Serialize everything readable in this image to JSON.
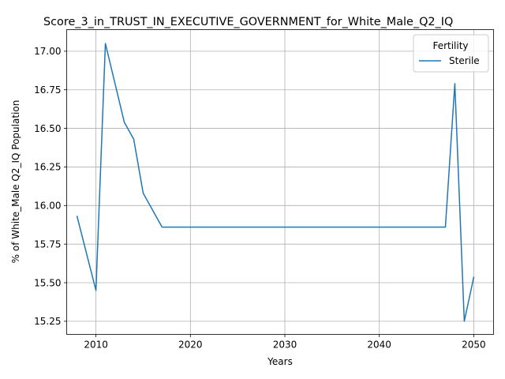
{
  "chart_data": {
    "type": "line",
    "title": "Score_3_in_TRUST_IN_EXECUTIVE_GOVERNMENT_for_White_Male_Q2_IQ",
    "xlabel": "Years",
    "ylabel": "% of White_Male Q2_IQ Population",
    "xlim": [
      2006.9,
      2052.1
    ],
    "ylim": [
      15.165,
      17.14
    ],
    "x_ticks": [
      2010,
      2020,
      2030,
      2040,
      2050
    ],
    "y_ticks": [
      15.25,
      15.5,
      15.75,
      16.0,
      16.25,
      16.5,
      16.75,
      17.0
    ],
    "grid": true,
    "legend": {
      "title": "Fertility",
      "placement": "top-right"
    },
    "series": [
      {
        "name": "Sterile",
        "color": "#1f77b4",
        "x": [
          2008,
          2010,
          2011,
          2013,
          2014,
          2015,
          2017,
          2018,
          2047,
          2048,
          2049,
          2050
        ],
        "y": [
          15.93,
          15.45,
          17.05,
          16.54,
          16.43,
          16.08,
          15.86,
          15.86,
          15.86,
          16.79,
          15.25,
          15.535
        ]
      }
    ]
  }
}
